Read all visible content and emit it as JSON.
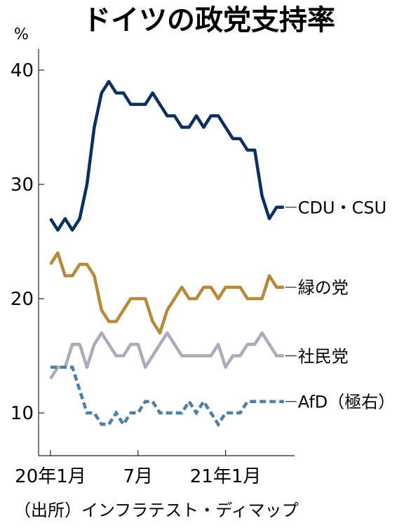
{
  "chart_data": {
    "type": "line",
    "title": "ドイツの政党支持率",
    "ylabel": "%",
    "ylim": [
      6,
      43
    ],
    "yticks": [
      10,
      20,
      30,
      40
    ],
    "x_tick_labels": [
      "20年1月",
      "7月",
      "21年1月"
    ],
    "x": [
      0,
      1,
      2,
      3,
      4,
      5,
      6,
      7,
      8,
      9,
      10,
      11,
      12,
      13,
      14,
      15,
      16,
      17,
      18,
      19,
      20,
      21,
      22,
      23,
      24,
      25,
      26,
      27,
      28,
      29,
      30,
      31,
      32
    ],
    "series": [
      {
        "name": "CDU・CSU",
        "color": "#0d2f5f",
        "style": "solid",
        "values": [
          27,
          26,
          27,
          26,
          27,
          30,
          35,
          38,
          39,
          38,
          38,
          37,
          37,
          37,
          38,
          37,
          36,
          36,
          35,
          35,
          36,
          35,
          36,
          36,
          35,
          34,
          34,
          33,
          33,
          29,
          27,
          28,
          28
        ]
      },
      {
        "name": "緑の党",
        "color": "#b58a3a",
        "style": "solid",
        "values": [
          23,
          24,
          22,
          22,
          23,
          23,
          22,
          19,
          18,
          18,
          19,
          20,
          20,
          20,
          18,
          17,
          19,
          20,
          21,
          20,
          20,
          21,
          21,
          20,
          21,
          21,
          21,
          20,
          20,
          20,
          22,
          21,
          21
        ]
      },
      {
        "name": "社民党",
        "color": "#a9adb9",
        "style": "solid",
        "values": [
          13,
          14,
          14,
          16,
          16,
          14,
          16,
          17,
          16,
          15,
          15,
          16,
          16,
          14,
          15,
          16,
          17,
          16,
          15,
          15,
          15,
          15,
          15,
          16,
          14,
          15,
          15,
          16,
          16,
          17,
          16,
          15,
          15
        ]
      },
      {
        "name": "AfD（極右）",
        "color": "#4f7fa3",
        "style": "dashed",
        "values": [
          14,
          14,
          14,
          14,
          12,
          10,
          10,
          9,
          9,
          10,
          9,
          10,
          10,
          11,
          11,
          10,
          10,
          10,
          10,
          11,
          10,
          11,
          10,
          9,
          10,
          10,
          10,
          11,
          11,
          11,
          11,
          11,
          11
        ]
      }
    ],
    "source": "（出所）インフラテスト・ディマップ"
  }
}
